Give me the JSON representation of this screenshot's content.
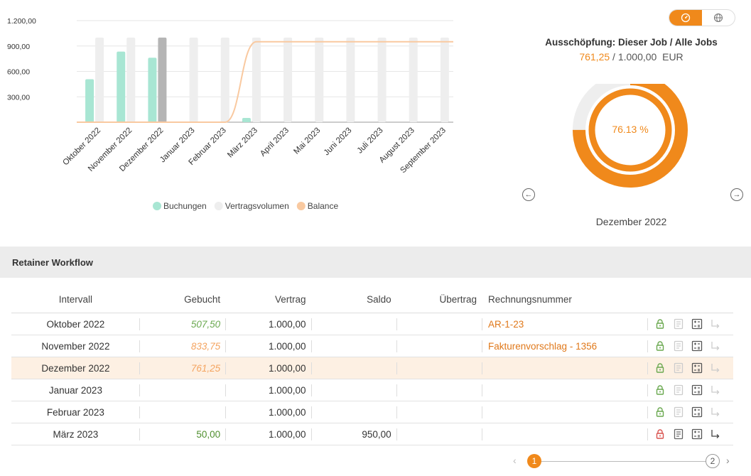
{
  "chart_data": {
    "type": "bar",
    "categories": [
      "Oktober 2022",
      "November 2022",
      "Dezember 2022",
      "Januar 2023",
      "Februar 2023",
      "März 2023",
      "April 2023",
      "Mai 2023",
      "Juni 2023",
      "Juli 2023",
      "August 2023",
      "September 2023"
    ],
    "y_ticks": [
      "1.200,00",
      "900,00",
      "600,00",
      "300,00"
    ],
    "ylim": [
      0,
      1200
    ],
    "series": [
      {
        "name": "Buchungen",
        "kind": "bar",
        "color": "#a8e6d3",
        "values": [
          507.5,
          833.75,
          761.25,
          0,
          0,
          50,
          0,
          0,
          0,
          0,
          0,
          0
        ]
      },
      {
        "name": "Vertragsvolumen",
        "kind": "bar",
        "color": "#eeeeee",
        "values": [
          1000,
          1000,
          1000,
          1000,
          1000,
          1000,
          1000,
          1000,
          1000,
          1000,
          1000,
          1000
        ]
      },
      {
        "name": "Balance",
        "kind": "line",
        "color": "#f9c9a0",
        "values": [
          0,
          0,
          0,
          0,
          0,
          950,
          950,
          950,
          950,
          950,
          950,
          950
        ]
      }
    ],
    "highlight_index": 2,
    "highlight_color": "#b5b5b5",
    "legend_position": "bottom"
  },
  "toggle": {
    "left_icon": "speedometer-icon",
    "right_icon": "globe-icon",
    "active": "left"
  },
  "donut": {
    "title": "Ausschöpfung: Dieser Job / Alle Jobs",
    "current": "761,25",
    "separator": " / ",
    "total": "1.000,00",
    "currency": "EUR",
    "percent_label": "76.13 %",
    "inner_fraction": 0.7613,
    "outer_fraction": 0.75,
    "month": "Dezember 2022",
    "color": "#f0891b",
    "track_color": "#eeeeee"
  },
  "section": {
    "title": "Retainer Workflow"
  },
  "table": {
    "headers": {
      "intervall": "Intervall",
      "gebucht": "Gebucht",
      "vertrag": "Vertrag",
      "saldo": "Saldo",
      "uebertrag": "Übertrag",
      "rechnungsnummer": "Rechnungsnummer"
    },
    "rows": [
      {
        "intervall": "Oktober 2022",
        "gebucht": "507,50",
        "gebucht_style": "green",
        "vertrag": "1.000,00",
        "saldo": "",
        "uebertrag": "",
        "rechnungsnummer": "AR-1-23",
        "lock": "green",
        "highlight": false
      },
      {
        "intervall": "November 2022",
        "gebucht": "833,75",
        "gebucht_style": "orange",
        "vertrag": "1.000,00",
        "saldo": "",
        "uebertrag": "",
        "rechnungsnummer": "Fakturenvorschlag - 1356",
        "lock": "green",
        "highlight": false
      },
      {
        "intervall": "Dezember 2022",
        "gebucht": "761,25",
        "gebucht_style": "orange",
        "vertrag": "1.000,00",
        "saldo": "",
        "uebertrag": "",
        "rechnungsnummer": "",
        "lock": "green",
        "highlight": true
      },
      {
        "intervall": "Januar 2023",
        "gebucht": "",
        "gebucht_style": "",
        "vertrag": "1.000,00",
        "saldo": "",
        "uebertrag": "",
        "rechnungsnummer": "",
        "lock": "green",
        "highlight": false
      },
      {
        "intervall": "Februar 2023",
        "gebucht": "",
        "gebucht_style": "",
        "vertrag": "1.000,00",
        "saldo": "",
        "uebertrag": "",
        "rechnungsnummer": "",
        "lock": "green",
        "highlight": false
      },
      {
        "intervall": "März 2023",
        "gebucht": "50,00",
        "gebucht_style": "dgreen",
        "vertrag": "1.000,00",
        "saldo": "950,00",
        "uebertrag": "",
        "rechnungsnummer": "",
        "lock": "red",
        "highlight": false
      }
    ],
    "row_icons": [
      "lock-icon",
      "invoice-icon",
      "calculator-icon",
      "carry-over-arrow-icon"
    ]
  },
  "pager": {
    "current": "1",
    "next": "2"
  }
}
